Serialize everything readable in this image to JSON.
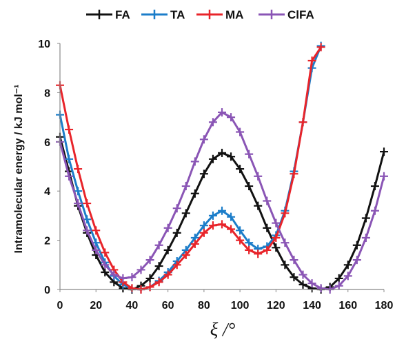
{
  "chart_data": {
    "type": "line",
    "xlabel": "ξ /°",
    "ylabel": "Intramolecular energy / kJ mol⁻¹",
    "xlim": [
      0,
      180
    ],
    "ylim": [
      0,
      10
    ],
    "x_ticks": [
      0,
      20,
      40,
      60,
      80,
      100,
      120,
      140,
      160,
      180
    ],
    "y_ticks": [
      0,
      2,
      4,
      6,
      8,
      10
    ],
    "grid": false,
    "legend_position": "top",
    "markers": "plus",
    "series": [
      {
        "name": "FA",
        "color": "#111111",
        "x": [
          0,
          5,
          10,
          15,
          20,
          25,
          30,
          35,
          40,
          45,
          50,
          55,
          60,
          65,
          70,
          75,
          80,
          85,
          90,
          95,
          100,
          105,
          110,
          115,
          120,
          125,
          130,
          135,
          140,
          145,
          150,
          155,
          160,
          165,
          170,
          175,
          180
        ],
        "y": [
          6.2,
          4.8,
          3.4,
          2.3,
          1.4,
          0.7,
          0.3,
          0.05,
          0,
          0.15,
          0.45,
          0.95,
          1.6,
          2.3,
          3.1,
          3.9,
          4.7,
          5.3,
          5.55,
          5.4,
          4.9,
          4.2,
          3.4,
          2.5,
          1.7,
          1.0,
          0.5,
          0.2,
          0.05,
          0,
          0.1,
          0.45,
          1.0,
          1.8,
          2.9,
          4.2,
          5.6
        ]
      },
      {
        "name": "TA",
        "color": "#1b7dc9",
        "x": [
          0,
          5,
          10,
          15,
          20,
          25,
          30,
          35,
          40,
          45,
          50,
          55,
          60,
          65,
          70,
          75,
          80,
          85,
          90,
          95,
          100,
          105,
          110,
          115,
          120,
          125,
          130,
          135,
          140,
          145
        ],
        "y": [
          7.1,
          5.3,
          4.0,
          2.85,
          1.9,
          1.1,
          0.55,
          0.2,
          0.03,
          0,
          0.1,
          0.35,
          0.7,
          1.15,
          1.6,
          2.1,
          2.6,
          3.0,
          3.2,
          2.95,
          2.4,
          1.9,
          1.65,
          1.75,
          2.2,
          3.2,
          4.8,
          6.8,
          9.0,
          9.9
        ]
      },
      {
        "name": "MA",
        "color": "#e8242a",
        "x": [
          0,
          5,
          10,
          15,
          20,
          25,
          30,
          35,
          40,
          45,
          50,
          55,
          60,
          65,
          70,
          75,
          80,
          85,
          90,
          95,
          100,
          105,
          110,
          115,
          120,
          125,
          130,
          135,
          140,
          145
        ],
        "y": [
          8.3,
          6.5,
          4.9,
          3.5,
          2.4,
          1.5,
          0.8,
          0.3,
          0.05,
          0,
          0.1,
          0.3,
          0.6,
          1.0,
          1.4,
          1.85,
          2.3,
          2.6,
          2.65,
          2.45,
          2.0,
          1.6,
          1.45,
          1.6,
          2.1,
          3.1,
          4.7,
          6.8,
          9.3,
          9.85
        ]
      },
      {
        "name": "ClFA",
        "color": "#8a55b5",
        "x": [
          0,
          5,
          10,
          15,
          20,
          25,
          30,
          35,
          40,
          45,
          50,
          55,
          60,
          65,
          70,
          75,
          80,
          85,
          90,
          95,
          100,
          105,
          110,
          115,
          120,
          125,
          130,
          135,
          140,
          145,
          150,
          155,
          160,
          165,
          170,
          175,
          180
        ],
        "y": [
          6.0,
          4.6,
          3.5,
          2.4,
          1.6,
          1.0,
          0.6,
          0.45,
          0.5,
          0.8,
          1.2,
          1.8,
          2.5,
          3.3,
          4.2,
          5.2,
          6.1,
          6.8,
          7.2,
          7.0,
          6.4,
          5.5,
          4.6,
          3.6,
          2.7,
          1.9,
          1.2,
          0.6,
          0.25,
          0.05,
          0,
          0.15,
          0.55,
          1.2,
          2.1,
          3.2,
          4.6
        ]
      }
    ]
  }
}
